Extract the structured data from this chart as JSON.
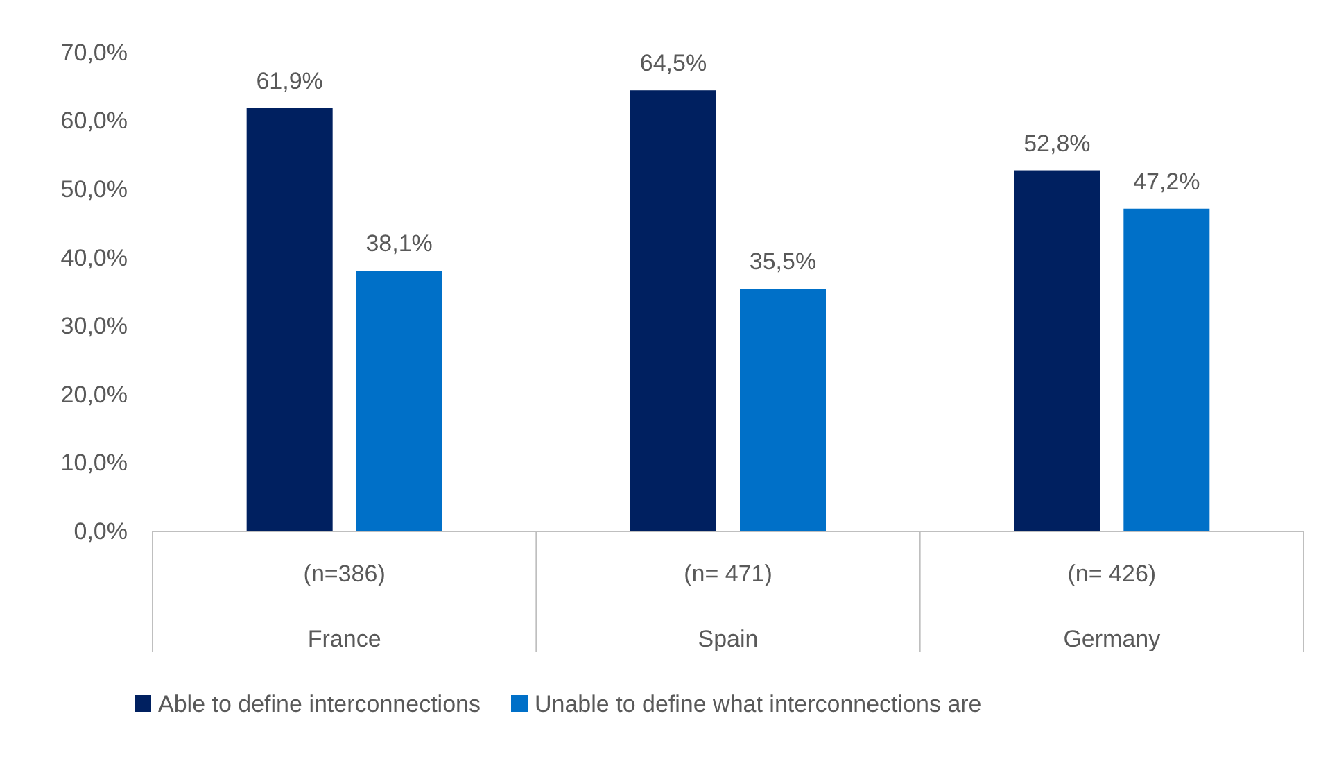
{
  "chart_data": {
    "type": "bar",
    "categories": [
      "(n=386)\nFrance",
      "(n= 471)\nSpain",
      "(n= 426)\nGermany"
    ],
    "series": [
      {
        "name": "Able to define interconnections",
        "color": "#002060",
        "values": [
          61.9,
          64.5,
          52.8
        ],
        "value_labels": [
          "61,9%",
          "64,5%",
          "52,8%"
        ]
      },
      {
        "name": "Unable to define what interconnections are",
        "color": "#0070c8",
        "values": [
          38.1,
          35.5,
          47.2
        ],
        "value_labels": [
          "38,1%",
          "35,5%",
          "47,2%"
        ]
      }
    ],
    "ylim": [
      0,
      70
    ],
    "yticks": [
      {
        "value": 0,
        "label": "0,0%"
      },
      {
        "value": 10,
        "label": "10,0%"
      },
      {
        "value": 20,
        "label": "20,0%"
      },
      {
        "value": 30,
        "label": "30,0%"
      },
      {
        "value": 40,
        "label": "40,0%"
      },
      {
        "value": 50,
        "label": "50,0%"
      },
      {
        "value": 60,
        "label": "60,0%"
      },
      {
        "value": 70,
        "label": "70,0%"
      }
    ],
    "grid": false,
    "legend": "bottom"
  }
}
